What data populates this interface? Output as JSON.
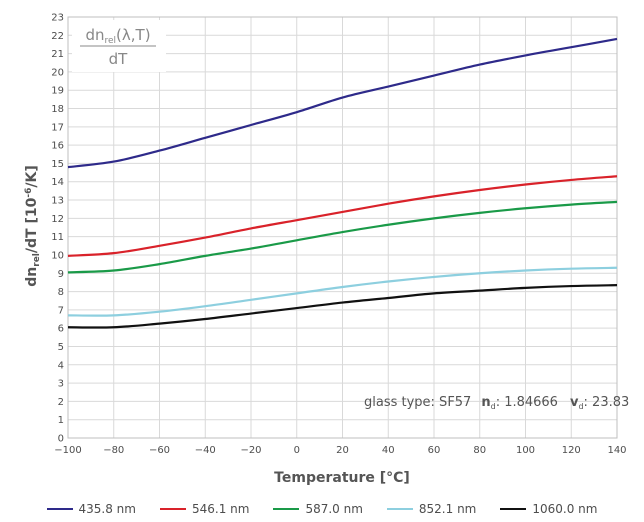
{
  "chart_data": {
    "type": "line",
    "xlabel": "Temperature [°C]",
    "ylabel": "dn_rel/dT [10^-6/K]",
    "xlim": [
      -100,
      140
    ],
    "ylim": [
      0,
      23
    ],
    "x_ticks": [
      -100,
      -80,
      -60,
      -40,
      -20,
      0,
      20,
      40,
      60,
      80,
      100,
      120,
      140
    ],
    "y_ticks": [
      0,
      1,
      2,
      3,
      4,
      5,
      6,
      7,
      8,
      9,
      10,
      11,
      12,
      13,
      14,
      15,
      16,
      17,
      18,
      19,
      20,
      21,
      22,
      23
    ],
    "grid": true,
    "legend_position": "bottom",
    "formula_label": {
      "numerator": "dn",
      "sub": "rel",
      "args": "(λ,T)",
      "denominator": "dT"
    },
    "annotation": {
      "prefix": "glass type: SF57",
      "nd_sym": "n",
      "nd_sub": "d",
      "nd_val": ": 1.84666",
      "vd_sym": "v",
      "vd_sub": "d",
      "vd_val": ": 23.83"
    },
    "x": [
      -100,
      -80,
      -60,
      -40,
      -20,
      0,
      20,
      40,
      60,
      80,
      100,
      120,
      140
    ],
    "series": [
      {
        "name": "435.8 nm",
        "color": "#2e2a8a",
        "values": [
          14.8,
          15.1,
          15.7,
          16.4,
          17.1,
          17.8,
          18.6,
          19.2,
          19.8,
          20.4,
          20.9,
          21.35,
          21.8
        ]
      },
      {
        "name": "546.1 nm",
        "color": "#d9222a",
        "values": [
          9.95,
          10.1,
          10.5,
          10.95,
          11.45,
          11.9,
          12.35,
          12.8,
          13.2,
          13.55,
          13.85,
          14.1,
          14.3
        ]
      },
      {
        "name": "587.0 nm",
        "color": "#1a9a48",
        "values": [
          9.05,
          9.15,
          9.5,
          9.95,
          10.35,
          10.8,
          11.25,
          11.65,
          12.0,
          12.3,
          12.55,
          12.75,
          12.9
        ]
      },
      {
        "name": "852.1 nm",
        "color": "#8dcfdf",
        "values": [
          6.7,
          6.7,
          6.9,
          7.2,
          7.55,
          7.9,
          8.25,
          8.55,
          8.8,
          9.0,
          9.15,
          9.25,
          9.3
        ]
      },
      {
        "name": "1060.0 nm",
        "color": "#111111",
        "values": [
          6.05,
          6.05,
          6.25,
          6.5,
          6.8,
          7.1,
          7.4,
          7.65,
          7.9,
          8.05,
          8.2,
          8.3,
          8.35
        ]
      }
    ]
  }
}
